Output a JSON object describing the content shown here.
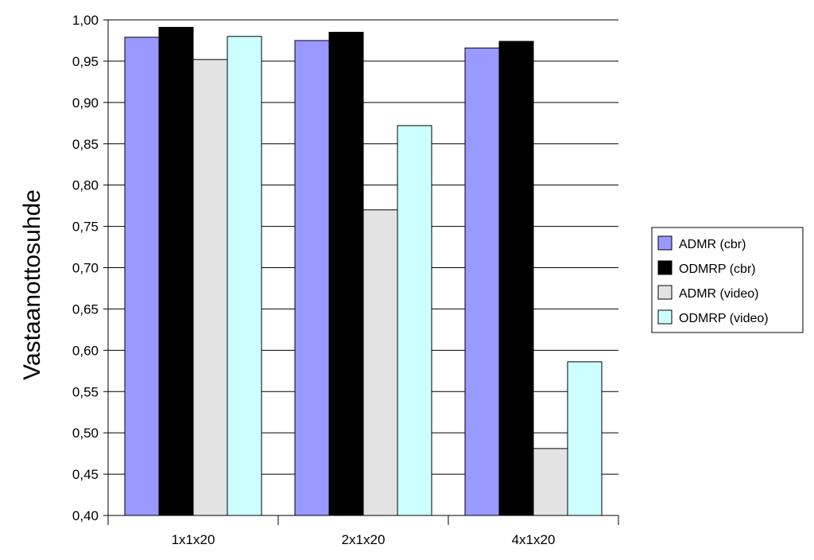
{
  "chart_data": {
    "type": "bar",
    "title": "",
    "xlabel": "",
    "ylabel": "Vastaanottosuhde",
    "ylim": [
      0.4,
      1.0
    ],
    "yticks": [
      "0,40",
      "0,45",
      "0,50",
      "0,55",
      "0,60",
      "0,65",
      "0,70",
      "0,75",
      "0,80",
      "0,85",
      "0,90",
      "0,95",
      "1,00"
    ],
    "grid": true,
    "legend_position": "right",
    "categories": [
      "1x1x20",
      "2x1x20",
      "4x1x20"
    ],
    "series": [
      {
        "name": "ADMR (cbr)",
        "color": "#9999ff",
        "values": [
          0.979,
          0.975,
          0.966
        ]
      },
      {
        "name": "ODMRP (cbr)",
        "color": "#000000",
        "values": [
          0.991,
          0.985,
          0.974
        ]
      },
      {
        "name": "ADMR (video)",
        "color": "#e3e3e3",
        "values": [
          0.952,
          0.77,
          0.481
        ]
      },
      {
        "name": "ODMRP (video)",
        "color": "#ccffff",
        "values": [
          0.98,
          0.872,
          0.586
        ]
      }
    ]
  }
}
